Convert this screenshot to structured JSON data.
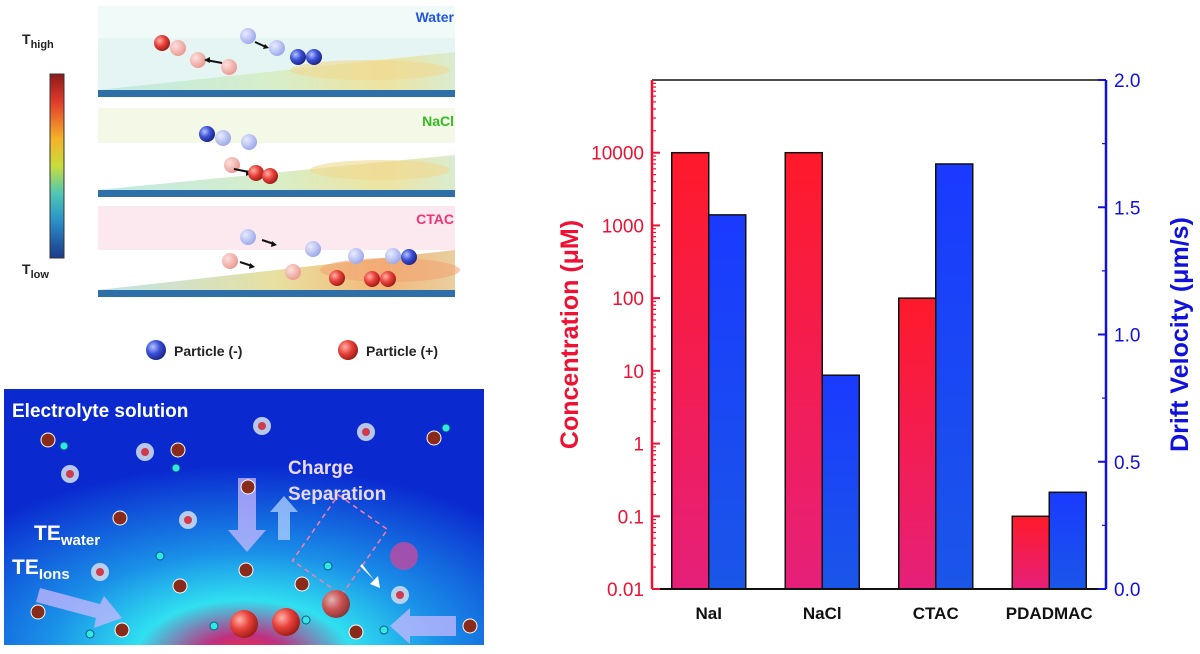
{
  "schematic": {
    "colorbar": {
      "high_main": "T",
      "high_sub": "high",
      "low_main": "T",
      "low_sub": "low"
    },
    "layers": [
      {
        "label": "Water",
        "color": "#2255dd"
      },
      {
        "label": "NaCl",
        "color": "#33bb22"
      },
      {
        "label": "CTAC",
        "color": "#ee3377"
      }
    ],
    "legend": {
      "negative": "Particle (-)",
      "positive": "Particle (+)"
    },
    "electrolyte": {
      "title": "Electrolyte solution",
      "charge_line1": "Charge",
      "charge_line2": "Separation",
      "te_water_main": "TE",
      "te_water_sub": "water",
      "te_ions_main": "TE",
      "te_ions_sub": "Ions"
    }
  },
  "chart_data": {
    "type": "bar",
    "categories": [
      "NaI",
      "NaCl",
      "CTAC",
      "PDADMAC"
    ],
    "series": [
      {
        "name": "Concentration (μM)",
        "axis": "left",
        "color": "#ee1133",
        "values": [
          10000,
          10000,
          100,
          0.1
        ]
      },
      {
        "name": "Drift Velocity (μm/s)",
        "axis": "right",
        "color": "#1133ee",
        "values": [
          1.47,
          0.84,
          1.67,
          0.38
        ]
      }
    ],
    "y_left": {
      "label": "Concentration (μM)",
      "scale": "log",
      "ylim": [
        0.01,
        100000
      ],
      "ticks": [
        0.01,
        0.1,
        1,
        10,
        100,
        1000,
        10000
      ],
      "tick_labels": [
        "0.01",
        "0.1",
        "1",
        "10",
        "100",
        "1000",
        "10000"
      ],
      "color": "#ee1133"
    },
    "y_right": {
      "label": "Drift Velocity (μm/s)",
      "scale": "linear",
      "ylim": [
        0.0,
        2.0
      ],
      "ticks": [
        0.0,
        0.5,
        1.0,
        1.5,
        2.0
      ],
      "tick_labels": [
        "0.0",
        "0.5",
        "1.0",
        "1.5",
        "2.0"
      ],
      "color": "#1111dd"
    },
    "grid": false,
    "legend": "none"
  }
}
